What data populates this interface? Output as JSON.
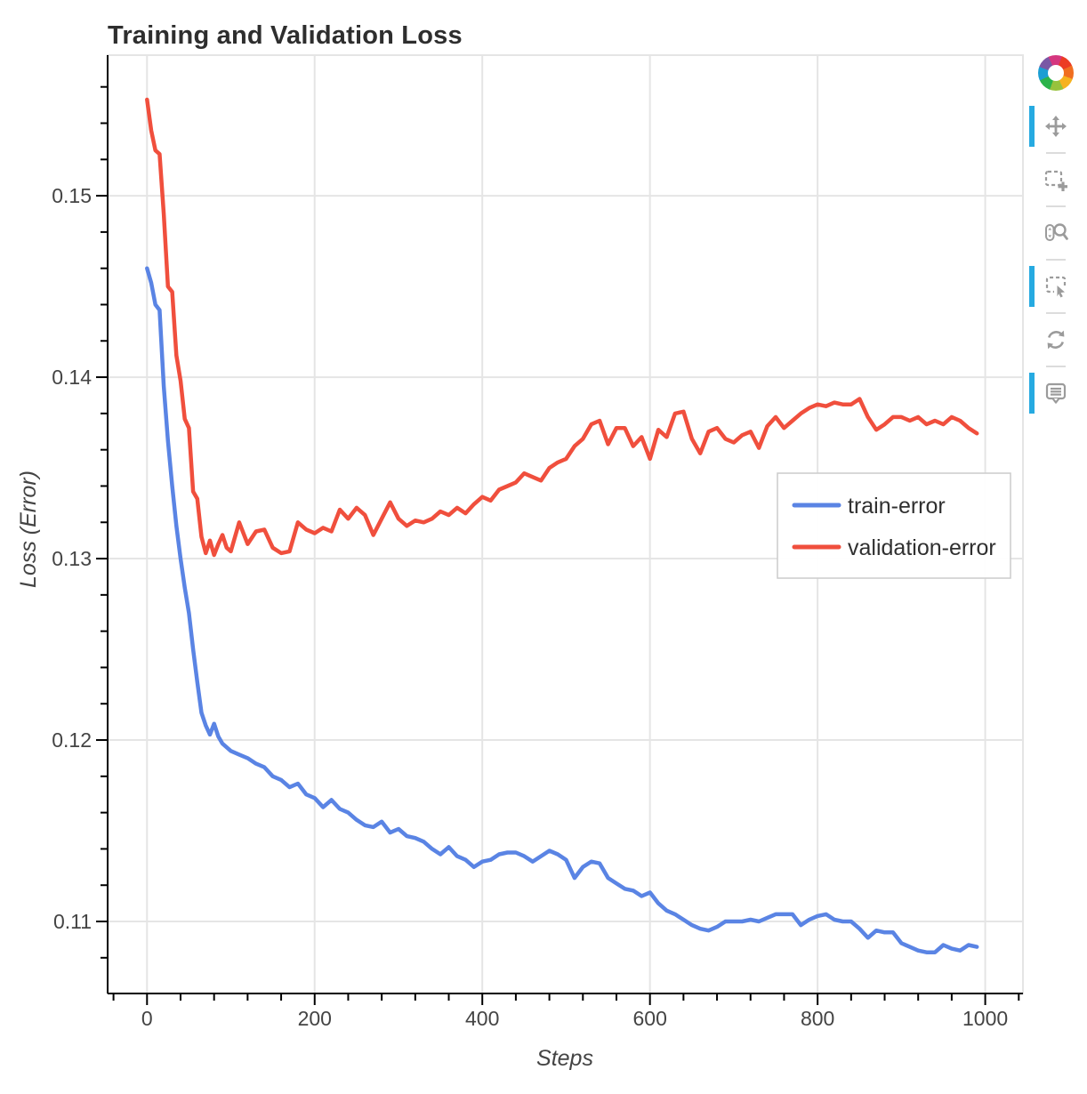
{
  "title": "Training and Validation Loss",
  "chart_data": {
    "type": "line",
    "title": "Training and Validation Loss",
    "xlabel": "Steps",
    "ylabel": "Loss (Error)",
    "xlim": [
      -47,
      1045
    ],
    "ylim": [
      0.10603,
      0.15775
    ],
    "grid": true,
    "x_ticks": {
      "major": [
        0,
        200,
        400,
        600,
        800,
        1000
      ],
      "labels": [
        "0",
        "200",
        "400",
        "600",
        "800",
        "1000"
      ],
      "minor_step": 40
    },
    "y_ticks": {
      "major": [
        0.11,
        0.12,
        0.13,
        0.14,
        0.15
      ],
      "labels": [
        "0.11",
        "0.12",
        "0.13",
        "0.14",
        "0.15"
      ],
      "minor_step": 0.002
    },
    "legend": {
      "position": "center-right",
      "entries": [
        "train-error",
        "validation-error"
      ]
    },
    "x": [
      0,
      5,
      10,
      15,
      20,
      25,
      30,
      35,
      40,
      45,
      50,
      55,
      60,
      65,
      70,
      75,
      80,
      85,
      90,
      95,
      100,
      110,
      120,
      130,
      140,
      150,
      160,
      170,
      180,
      190,
      200,
      210,
      220,
      230,
      240,
      250,
      260,
      270,
      280,
      290,
      300,
      310,
      320,
      330,
      340,
      350,
      360,
      370,
      380,
      390,
      400,
      410,
      420,
      430,
      440,
      450,
      460,
      470,
      480,
      490,
      500,
      510,
      520,
      530,
      540,
      550,
      560,
      570,
      580,
      590,
      600,
      610,
      620,
      630,
      640,
      650,
      660,
      670,
      680,
      690,
      700,
      710,
      720,
      730,
      740,
      750,
      760,
      770,
      780,
      790,
      800,
      810,
      820,
      830,
      840,
      850,
      860,
      870,
      880,
      890,
      900,
      910,
      920,
      930,
      940,
      950,
      960,
      970,
      980,
      990
    ],
    "series": [
      {
        "name": "train-error",
        "color": "#5a84e4",
        "values": [
          0.146,
          0.1452,
          0.144,
          0.1437,
          0.1395,
          0.1365,
          0.134,
          0.1318,
          0.13,
          0.1284,
          0.127,
          0.125,
          0.1232,
          0.1215,
          0.1208,
          0.1203,
          0.1209,
          0.1202,
          0.1198,
          0.1196,
          0.1194,
          0.1192,
          0.119,
          0.1187,
          0.1185,
          0.118,
          0.1178,
          0.1174,
          0.1176,
          0.117,
          0.1168,
          0.1163,
          0.1167,
          0.1162,
          0.116,
          0.1156,
          0.1153,
          0.1152,
          0.1155,
          0.1149,
          0.1151,
          0.1147,
          0.1146,
          0.1144,
          0.114,
          0.1137,
          0.1141,
          0.1136,
          0.1134,
          0.113,
          0.1133,
          0.1134,
          0.1137,
          0.1138,
          0.1138,
          0.1136,
          0.1133,
          0.1136,
          0.1139,
          0.1137,
          0.1134,
          0.1124,
          0.113,
          0.1133,
          0.1132,
          0.1124,
          0.1121,
          0.1118,
          0.1117,
          0.1114,
          0.1116,
          0.111,
          0.1106,
          0.1104,
          0.1101,
          0.1098,
          0.1096,
          0.1095,
          0.1097,
          0.11,
          0.11,
          0.11,
          0.1101,
          0.11,
          0.1102,
          0.1104,
          0.1104,
          0.1104,
          0.1098,
          0.1101,
          0.1103,
          0.1104,
          0.1101,
          0.11,
          0.11,
          0.1096,
          0.1091,
          0.1095,
          0.1094,
          0.1094,
          0.1088,
          0.1086,
          0.1084,
          0.1083,
          0.1083,
          0.1087,
          0.1085,
          0.1084,
          0.1087,
          0.1086
        ]
      },
      {
        "name": "validation-error",
        "color": "#f04f3d",
        "values": [
          0.1553,
          0.1536,
          0.1525,
          0.1523,
          0.149,
          0.145,
          0.1447,
          0.1412,
          0.1398,
          0.1377,
          0.1372,
          0.1337,
          0.1333,
          0.1312,
          0.1303,
          0.131,
          0.1302,
          0.1308,
          0.1313,
          0.1306,
          0.1304,
          0.132,
          0.1308,
          0.1315,
          0.1316,
          0.1306,
          0.1303,
          0.1304,
          0.132,
          0.1316,
          0.1314,
          0.1317,
          0.1315,
          0.1327,
          0.1322,
          0.1328,
          0.1324,
          0.1313,
          0.1322,
          0.1331,
          0.1322,
          0.1318,
          0.1321,
          0.132,
          0.1322,
          0.1326,
          0.1324,
          0.1328,
          0.1325,
          0.133,
          0.1334,
          0.1332,
          0.1338,
          0.134,
          0.1342,
          0.1347,
          0.1345,
          0.1343,
          0.135,
          0.1353,
          0.1355,
          0.1362,
          0.1366,
          0.1374,
          0.1376,
          0.1363,
          0.1372,
          0.1372,
          0.1362,
          0.1367,
          0.1355,
          0.1371,
          0.1367,
          0.138,
          0.1381,
          0.1366,
          0.1358,
          0.137,
          0.1372,
          0.1366,
          0.1364,
          0.1368,
          0.137,
          0.1361,
          0.1373,
          0.1378,
          0.1372,
          0.1376,
          0.138,
          0.1383,
          0.1385,
          0.1384,
          0.1386,
          0.1385,
          0.1385,
          0.1388,
          0.1378,
          0.1371,
          0.1374,
          0.1378,
          0.1378,
          0.1376,
          0.1378,
          0.1374,
          0.1376,
          0.1374,
          0.1378,
          0.1376,
          0.1372,
          0.1369
        ]
      }
    ]
  },
  "toolbar": {
    "logo_name": "bokeh-logo",
    "tools": [
      {
        "name": "pan",
        "active": true
      },
      {
        "name": "box-zoom",
        "active": false
      },
      {
        "name": "wheel-zoom",
        "active": false
      },
      {
        "name": "box-select",
        "active": true
      },
      {
        "name": "reset",
        "active": false
      },
      {
        "name": "hover",
        "active": true
      }
    ]
  },
  "colors": {
    "active_indicator": "#26aae1",
    "grid": "#e5e5e5",
    "axis": "#000000",
    "tick_label": "#444444",
    "title": "#2e2e2e",
    "legend_border": "#cccccc",
    "icon": "#9b9b9b"
  }
}
